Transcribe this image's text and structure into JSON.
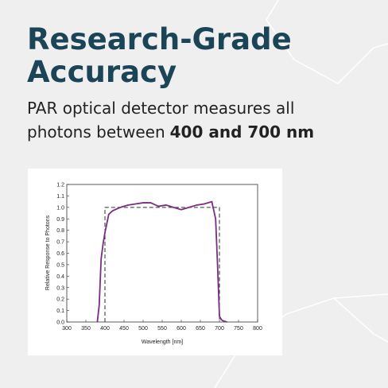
{
  "header": {
    "title_lines": [
      "Research-Grade",
      "Accuracy"
    ],
    "subtitle_line1": "PAR optical detector measures all",
    "subtitle_line2": "photons between",
    "subtitle_bold": "400 and 700 nm"
  },
  "chart_data": {
    "type": "line",
    "xlabel": "Wavelength [nm]",
    "ylabel": "Relative Response to Photons",
    "xlim": [
      300,
      800
    ],
    "xticks": [
      300,
      350,
      400,
      450,
      500,
      550,
      600,
      650,
      700,
      750,
      800
    ],
    "ylim": [
      0,
      1.2
    ],
    "yticks": [
      {
        "value": 0,
        "label": "0.0"
      },
      0.1,
      0.2,
      0.3,
      0.4,
      0.5,
      0.6,
      0.7,
      0.8,
      0.9,
      {
        "value": 1,
        "label": "1.0"
      },
      1.1,
      1.2
    ],
    "grid": false,
    "series": [
      {
        "color": "#333333",
        "style": "dashed",
        "x": [
          400,
          400,
          700,
          700
        ],
        "values": [
          0,
          1,
          1,
          0
        ]
      },
      {
        "color": "#7b2d84",
        "style": "solid",
        "x": [
          380,
          385,
          390,
          395,
          400,
          410,
          420,
          440,
          460,
          480,
          500,
          520,
          540,
          560,
          580,
          600,
          620,
          640,
          660,
          680,
          690,
          695,
          700,
          705,
          710,
          720
        ],
        "values": [
          0,
          0.15,
          0.55,
          0.68,
          0.78,
          0.94,
          0.97,
          1.0,
          1.02,
          1.03,
          1.04,
          1.04,
          1.01,
          1.02,
          1.0,
          0.98,
          1.0,
          1.02,
          1.03,
          1.05,
          0.9,
          0.5,
          0.05,
          0.02,
          0.01,
          0
        ]
      }
    ]
  }
}
